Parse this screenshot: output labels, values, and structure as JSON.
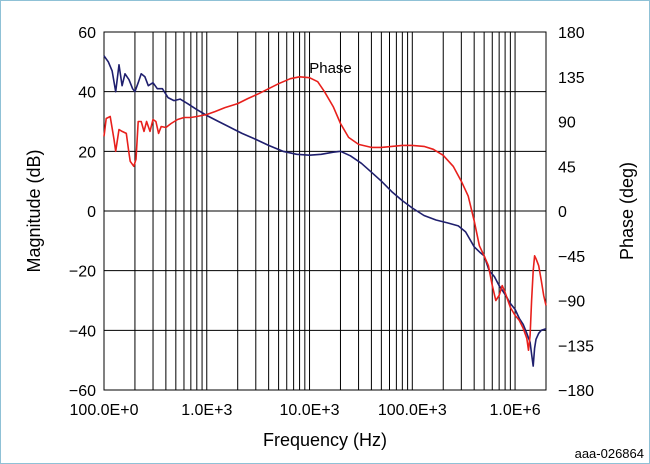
{
  "chart_data": {
    "type": "line",
    "title": "",
    "xlabel": "Frequency (Hz)",
    "ylabel": "Magnitude (dB)",
    "y2label": "Phase (deg)",
    "x_scale": "log",
    "xlim": [
      100,
      2000000
    ],
    "ylim": [
      -60,
      60
    ],
    "y2lim": [
      -180,
      180
    ],
    "grid": true,
    "x_ticks": [
      {
        "value": 100,
        "label": "100.0E+0"
      },
      {
        "value": 1000,
        "label": "1.0E+3"
      },
      {
        "value": 10000,
        "label": "10.0E+3"
      },
      {
        "value": 100000,
        "label": "100.0E+3"
      },
      {
        "value": 1000000,
        "label": "1.0E+6"
      }
    ],
    "y_ticks": [
      {
        "value": 60,
        "label": "60"
      },
      {
        "value": 40,
        "label": "40"
      },
      {
        "value": 20,
        "label": "20"
      },
      {
        "value": 0,
        "label": "0"
      },
      {
        "value": -20,
        "label": "−20"
      },
      {
        "value": -40,
        "label": "−40"
      },
      {
        "value": -60,
        "label": "−60"
      }
    ],
    "y2_ticks": [
      {
        "value": 180,
        "label": "180"
      },
      {
        "value": 135,
        "label": "135"
      },
      {
        "value": 90,
        "label": "90"
      },
      {
        "value": 45,
        "label": "45"
      },
      {
        "value": 0,
        "label": "0"
      },
      {
        "value": -45,
        "label": "−45"
      },
      {
        "value": -90,
        "label": "−90"
      },
      {
        "value": -135,
        "label": "−135"
      },
      {
        "value": -180,
        "label": "−180"
      }
    ],
    "annotations": [
      {
        "text": "Phase",
        "x": 16000,
        "y": 48
      }
    ],
    "series": [
      {
        "key": "magnitude",
        "axis": "left",
        "color": "#1f1f6e",
        "points": [
          [
            100,
            52
          ],
          [
            110,
            50
          ],
          [
            120,
            47
          ],
          [
            130,
            40
          ],
          [
            140,
            49
          ],
          [
            150,
            42
          ],
          [
            160,
            46
          ],
          [
            175,
            44
          ],
          [
            190,
            41
          ],
          [
            200,
            40
          ],
          [
            215,
            43
          ],
          [
            230,
            46
          ],
          [
            250,
            45
          ],
          [
            270,
            42
          ],
          [
            300,
            43
          ],
          [
            330,
            41
          ],
          [
            370,
            41
          ],
          [
            420,
            38
          ],
          [
            480,
            37
          ],
          [
            550,
            37.5
          ],
          [
            650,
            36
          ],
          [
            800,
            34
          ],
          [
            1000,
            32
          ],
          [
            1300,
            30
          ],
          [
            1700,
            28
          ],
          [
            2200,
            26
          ],
          [
            3000,
            24
          ],
          [
            4000,
            22
          ],
          [
            5500,
            20
          ],
          [
            7500,
            19
          ],
          [
            10000,
            18.7
          ],
          [
            13000,
            19
          ],
          [
            17000,
            19.7
          ],
          [
            20000,
            20
          ],
          [
            25000,
            18.5
          ],
          [
            32000,
            16
          ],
          [
            40000,
            13
          ],
          [
            50000,
            10
          ],
          [
            63000,
            6.5
          ],
          [
            80000,
            3.5
          ],
          [
            100000,
            1
          ],
          [
            130000,
            -1.5
          ],
          [
            170000,
            -3
          ],
          [
            220000,
            -4
          ],
          [
            280000,
            -5
          ],
          [
            330000,
            -7
          ],
          [
            400000,
            -12
          ],
          [
            460000,
            -14
          ],
          [
            500000,
            -15
          ],
          [
            560000,
            -20
          ],
          [
            630000,
            -22
          ],
          [
            700000,
            -25
          ],
          [
            800000,
            -28
          ],
          [
            900000,
            -31
          ],
          [
            1000000,
            -33
          ],
          [
            1100000,
            -36
          ],
          [
            1200000,
            -38
          ],
          [
            1300000,
            -41
          ],
          [
            1400000,
            -44
          ],
          [
            1450000,
            -48
          ],
          [
            1500000,
            -52
          ],
          [
            1550000,
            -46
          ],
          [
            1600000,
            -43
          ],
          [
            1700000,
            -41
          ],
          [
            1800000,
            -40
          ],
          [
            2000000,
            -39.5
          ]
        ]
      },
      {
        "key": "phase",
        "axis": "right",
        "color": "#e8201c",
        "points": [
          [
            100,
            75
          ],
          [
            105,
            93
          ],
          [
            115,
            95
          ],
          [
            125,
            72
          ],
          [
            130,
            60
          ],
          [
            140,
            82
          ],
          [
            150,
            80
          ],
          [
            165,
            78
          ],
          [
            175,
            58
          ],
          [
            180,
            50
          ],
          [
            195,
            45
          ],
          [
            205,
            52
          ],
          [
            215,
            90
          ],
          [
            230,
            90
          ],
          [
            245,
            80
          ],
          [
            260,
            90
          ],
          [
            280,
            80
          ],
          [
            300,
            92
          ],
          [
            320,
            90
          ],
          [
            340,
            78
          ],
          [
            360,
            85
          ],
          [
            400,
            84
          ],
          [
            450,
            88
          ],
          [
            520,
            92
          ],
          [
            600,
            94
          ],
          [
            700,
            94
          ],
          [
            800,
            95
          ],
          [
            1000,
            97
          ],
          [
            1200,
            100
          ],
          [
            1500,
            104
          ],
          [
            2000,
            108
          ],
          [
            2500,
            113
          ],
          [
            3200,
            118
          ],
          [
            4000,
            123
          ],
          [
            5000,
            128
          ],
          [
            6500,
            133
          ],
          [
            8000,
            135
          ],
          [
            10000,
            134
          ],
          [
            12000,
            130
          ],
          [
            14000,
            120
          ],
          [
            17000,
            105
          ],
          [
            20000,
            88
          ],
          [
            24000,
            74
          ],
          [
            30000,
            67
          ],
          [
            40000,
            64
          ],
          [
            50000,
            64
          ],
          [
            63000,
            65
          ],
          [
            80000,
            66
          ],
          [
            100000,
            66
          ],
          [
            130000,
            65
          ],
          [
            160000,
            62
          ],
          [
            200000,
            56
          ],
          [
            250000,
            45
          ],
          [
            300000,
            30
          ],
          [
            350000,
            15
          ],
          [
            400000,
            -10
          ],
          [
            450000,
            -35
          ],
          [
            500000,
            -45
          ],
          [
            550000,
            -55
          ],
          [
            600000,
            -75
          ],
          [
            650000,
            -90
          ],
          [
            700000,
            -85
          ],
          [
            750000,
            -75
          ],
          [
            800000,
            -82
          ],
          [
            900000,
            -97
          ],
          [
            1000000,
            -105
          ],
          [
            1100000,
            -110
          ],
          [
            1200000,
            -118
          ],
          [
            1300000,
            -128
          ],
          [
            1350000,
            -140
          ],
          [
            1400000,
            -125
          ],
          [
            1450000,
            -90
          ],
          [
            1500000,
            -60
          ],
          [
            1550000,
            -45
          ],
          [
            1600000,
            -48
          ],
          [
            1700000,
            -55
          ],
          [
            1800000,
            -70
          ],
          [
            1900000,
            -85
          ],
          [
            2000000,
            -95
          ]
        ]
      }
    ]
  },
  "figure_id": "aaa-026864"
}
